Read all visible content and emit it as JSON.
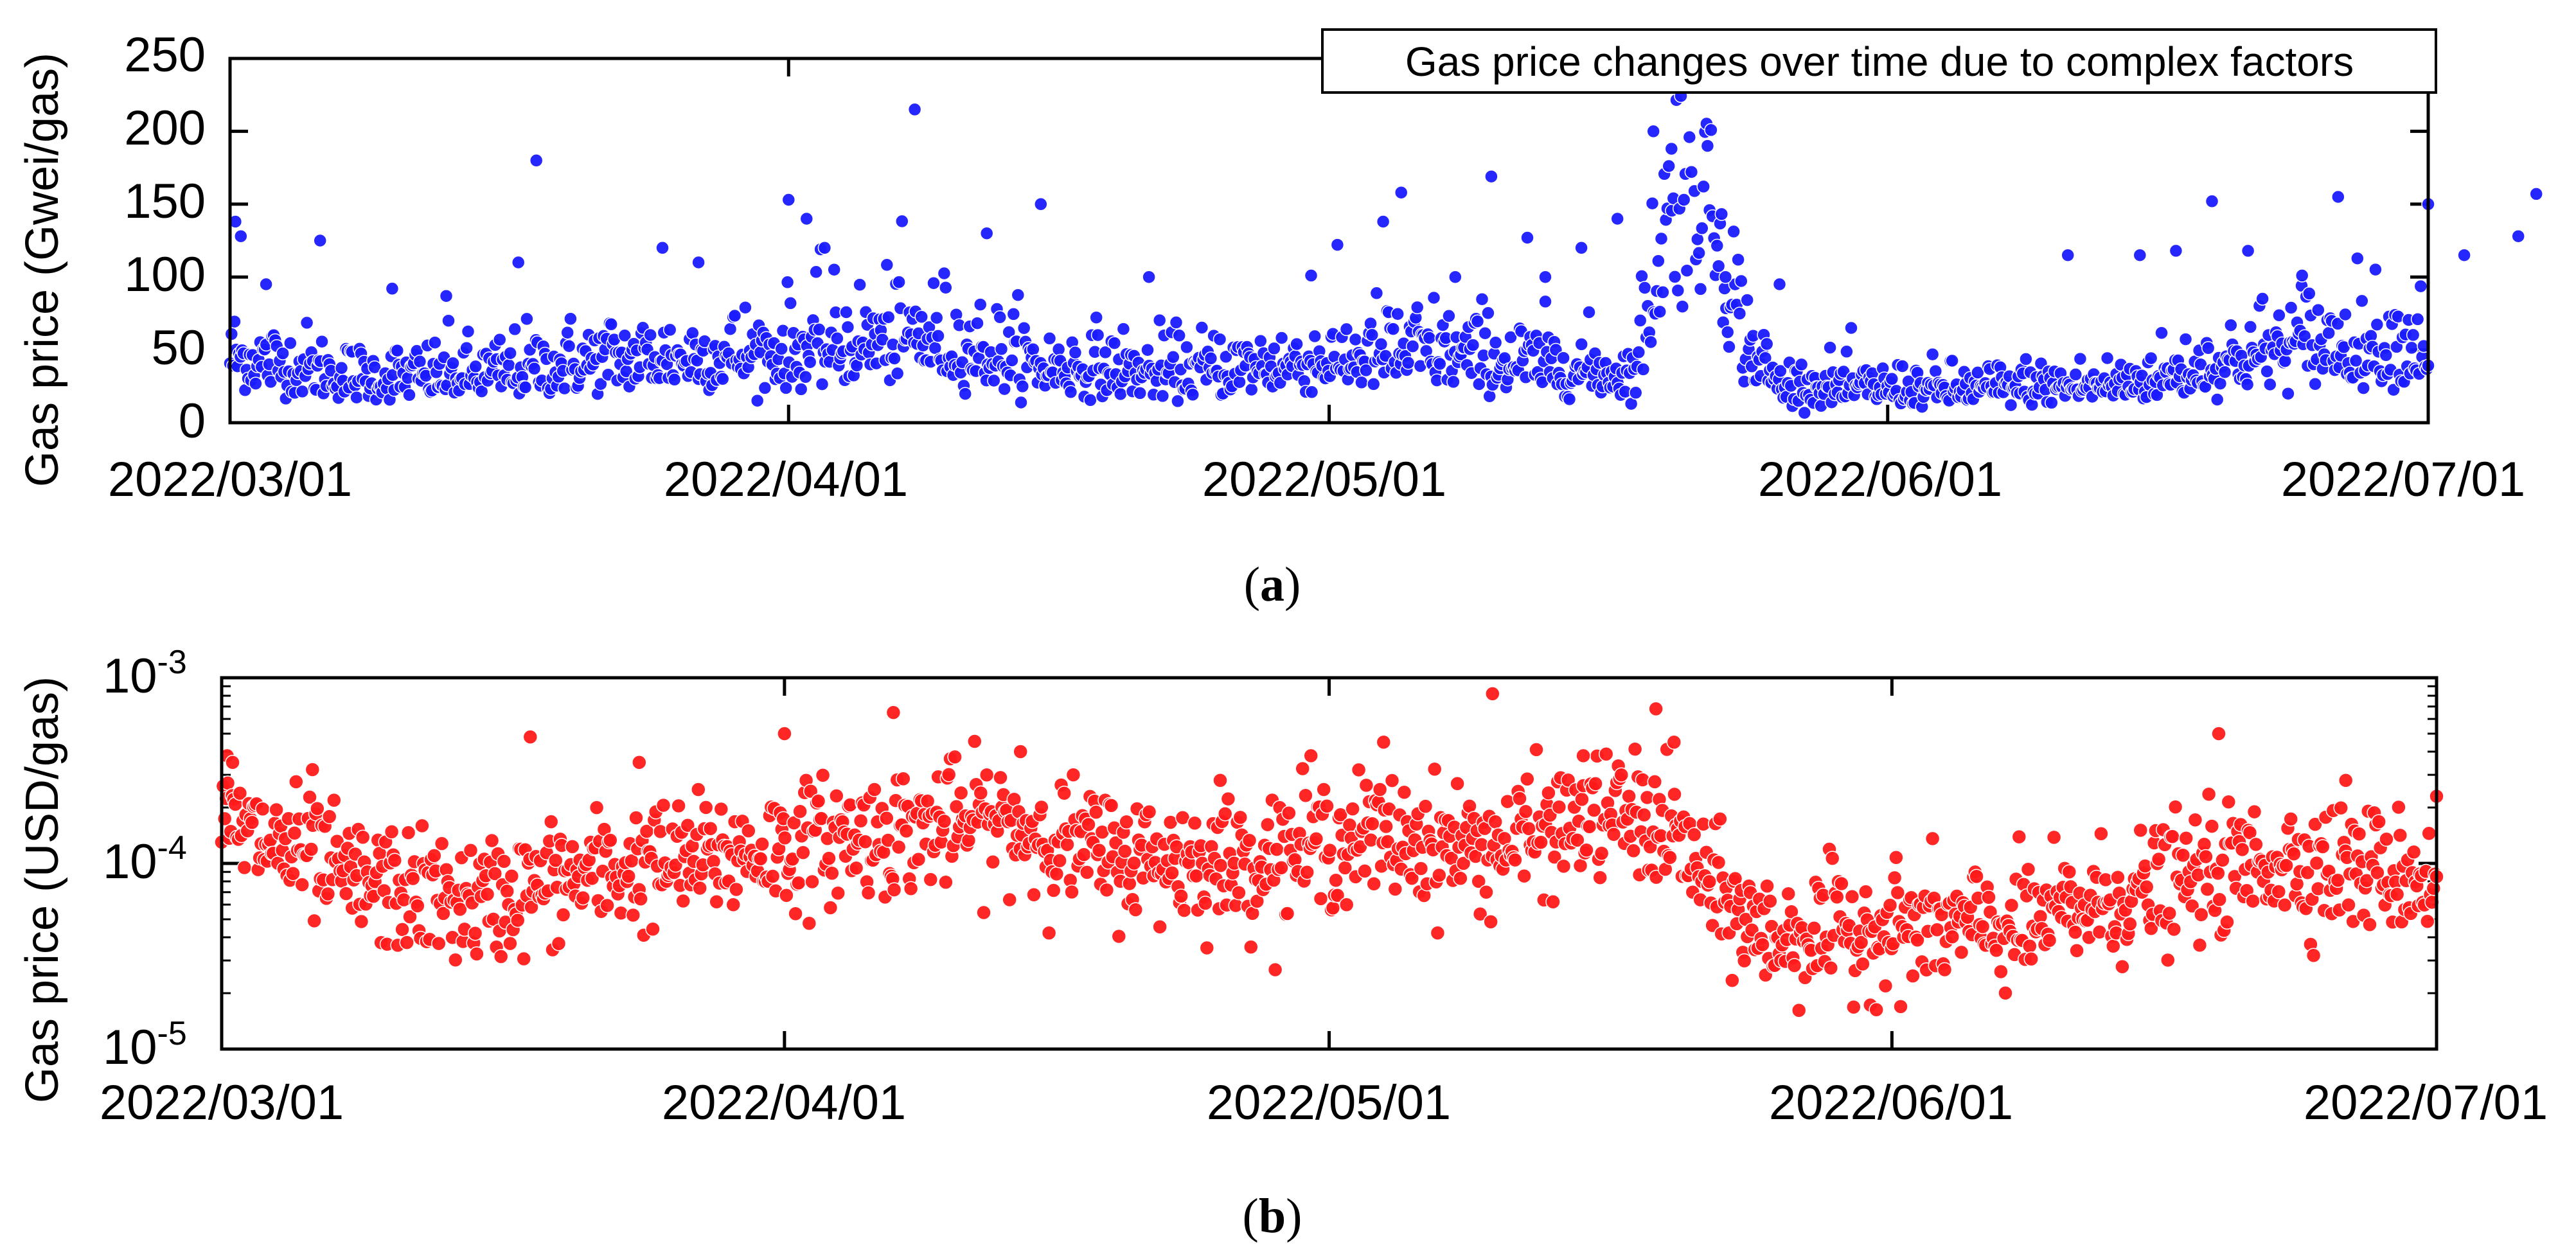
{
  "figure": {
    "panels": [
      {
        "caption_open": "(",
        "caption_letter": "a",
        "caption_close": ")"
      },
      {
        "caption_open": "(",
        "caption_letter": "b",
        "caption_close": ")"
      }
    ]
  },
  "colors": {
    "series_a": "#1a1aff",
    "series_b": "#ff1a1a",
    "axis": "#000000"
  },
  "chart_data": [
    {
      "type": "scatter",
      "title": "Gas price changes over time due to complex factors",
      "xlabel": "",
      "ylabel": "Gas price (Gwei/gas)",
      "yscale": "linear",
      "xlim": [
        "2022/03/01",
        "2022/07/01"
      ],
      "ylim": [
        0,
        250
      ],
      "yticks": [
        0,
        50,
        100,
        150,
        200,
        250
      ],
      "ytick_labels": [
        "0",
        "50",
        "100",
        "150",
        "200",
        "250"
      ],
      "xticks": [
        "2022/03/01",
        "2022/04/01",
        "2022/05/01",
        "2022/06/01",
        "2022/07/01"
      ],
      "legend": "top-right",
      "series": [
        {
          "name": "Gas price (Gwei/gas)",
          "color": "#1a1aff",
          "baseline": [
            [
              0,
              45
            ],
            [
              7,
              30
            ],
            [
              14,
              32
            ],
            [
              21,
              42
            ],
            [
              31,
              47
            ],
            [
              38,
              58
            ],
            [
              45,
              38
            ],
            [
              52,
              33
            ],
            [
              59,
              40
            ],
            [
              66,
              48
            ],
            [
              73,
              38
            ],
            [
              78,
              32
            ],
            [
              80,
              160
            ],
            [
              82,
              170
            ],
            [
              84,
              55
            ],
            [
              86,
              25
            ],
            [
              95,
              22
            ],
            [
              100,
              24
            ],
            [
              105,
              26
            ],
            [
              108,
              33
            ],
            [
              115,
              53
            ],
            [
              122,
              52
            ],
            [
              129,
              35
            ],
            [
              136,
              25
            ],
            [
              143,
              30
            ],
            [
              150,
              33
            ],
            [
              152,
              35
            ]
          ],
          "outliers": [
            [
              0.3,
              138
            ],
            [
              0.6,
              128
            ],
            [
              2,
              95
            ],
            [
              5,
              125
            ],
            [
              9,
              92
            ],
            [
              12,
              87
            ],
            [
              16,
              110
            ],
            [
              17,
              180
            ],
            [
              24,
              120
            ],
            [
              26,
              110
            ],
            [
              31,
              153
            ],
            [
              32,
              140
            ],
            [
              33,
              120
            ],
            [
              38,
              215
            ],
            [
              42,
              130
            ],
            [
              45,
              150
            ],
            [
              51,
              100
            ],
            [
              60,
              101
            ],
            [
              64,
              138
            ],
            [
              65,
              158
            ],
            [
              68,
              100
            ],
            [
              70,
              169
            ],
            [
              72,
              127
            ],
            [
              73,
              100
            ],
            [
              75,
              120
            ],
            [
              77,
              140
            ],
            [
              79,
              200
            ],
            [
              80,
              188
            ],
            [
              81,
              196
            ],
            [
              82,
              190
            ],
            [
              83,
              100
            ],
            [
              86,
              95
            ],
            [
              102,
              115
            ],
            [
              106,
              115
            ],
            [
              108,
              118
            ],
            [
              110,
              152
            ],
            [
              112,
              118
            ],
            [
              115,
              101
            ],
            [
              117,
              155
            ],
            [
              122,
              150
            ],
            [
              124,
              115
            ],
            [
              127,
              128
            ],
            [
              128,
              157
            ],
            [
              133,
              142
            ],
            [
              135,
              184
            ],
            [
              140,
              118
            ],
            [
              144,
              107
            ],
            [
              152,
              213
            ]
          ]
        }
      ]
    },
    {
      "type": "scatter",
      "title": "",
      "xlabel": "",
      "ylabel": "Gas price (USD/gas)",
      "yscale": "log",
      "xlim": [
        "2022/03/01",
        "2022/07/01"
      ],
      "ylim": [
        1e-05,
        0.001
      ],
      "ytick_labels": [
        {
          "base": "10",
          "exp": "-5"
        },
        {
          "base": "10",
          "exp": "-4"
        },
        {
          "base": "10",
          "exp": "-3"
        }
      ],
      "xticks": [
        "2022/03/01",
        "2022/04/01",
        "2022/05/01",
        "2022/06/01",
        "2022/07/01"
      ],
      "series": [
        {
          "name": "Gas price (USD/gas)",
          "color": "#ff1a1a",
          "baseline": [
            [
              0,
              0.00016
            ],
            [
              7,
              8e-05
            ],
            [
              14,
              6e-05
            ],
            [
              21,
              9e-05
            ],
            [
              28,
              0.00011
            ],
            [
              35,
              0.00014
            ],
            [
              42,
              0.00017
            ],
            [
              49,
              0.00011
            ],
            [
              56,
              0.0001
            ],
            [
              63,
              0.00014
            ],
            [
              70,
              0.00012
            ],
            [
              77,
              0.00019
            ],
            [
              80,
              0.00014
            ],
            [
              82,
              7e-05
            ],
            [
              85,
              4e-05
            ],
            [
              92,
              4.5e-05
            ],
            [
              99,
              4.5e-05
            ],
            [
              106,
              7e-05
            ],
            [
              113,
              0.000105
            ],
            [
              120,
              9e-05
            ],
            [
              127,
              5.5e-05
            ],
            [
              134,
              3e-05
            ],
            [
              141,
              3.3e-05
            ],
            [
              148,
              3.8e-05
            ],
            [
              152,
              4.5e-05
            ]
          ],
          "outliers": [
            [
              0.3,
              0.00038
            ],
            [
              0.6,
              0.00035
            ],
            [
              5,
              0.00032
            ],
            [
              17,
              0.00048
            ],
            [
              23,
              0.00035
            ],
            [
              31,
              0.0005
            ],
            [
              37,
              0.00065
            ],
            [
              44,
              0.0004
            ],
            [
              55,
              0.00028
            ],
            [
              60,
              0.00038
            ],
            [
              64,
              0.00045
            ],
            [
              70,
              0.00082
            ],
            [
              75,
              0.00038
            ],
            [
              79,
              0.00068
            ],
            [
              80,
              0.00045
            ],
            [
              110,
              0.0005
            ],
            [
              117,
              0.00028
            ],
            [
              122,
              0.00023
            ],
            [
              133,
              0.00015
            ],
            [
              152,
              0.00023
            ]
          ]
        }
      ]
    }
  ]
}
